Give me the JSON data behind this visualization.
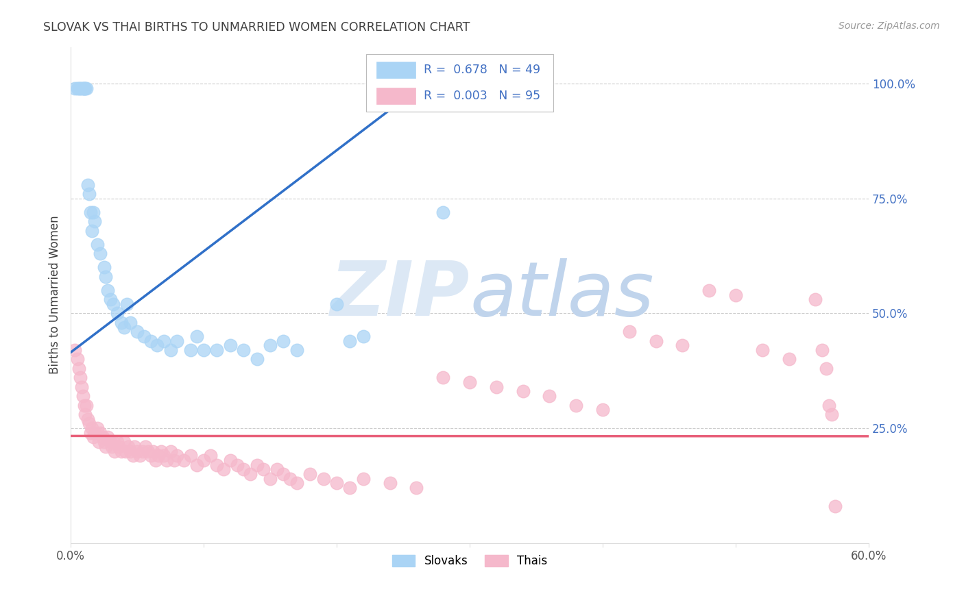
{
  "title": "SLOVAK VS THAI BIRTHS TO UNMARRIED WOMEN CORRELATION CHART",
  "source": "Source: ZipAtlas.com",
  "ylabel": "Births to Unmarried Women",
  "legend_slovak": "Slovaks",
  "legend_thai": "Thais",
  "slovak_R": "0.678",
  "slovak_N": "49",
  "thai_R": "0.003",
  "thai_N": "95",
  "slovak_color": "#aad4f5",
  "thai_color": "#f5b8cb",
  "slovak_line_color": "#3070c8",
  "thai_line_color": "#e8607a",
  "right_ytick_color": "#4472c4",
  "background_color": "#ffffff",
  "grid_color": "#cccccc",
  "watermark_zip_color": "#dce8f5",
  "watermark_atlas_color": "#c8d8ee",
  "title_color": "#404040",
  "source_color": "#999999",
  "xlim": [
    0.0,
    0.6
  ],
  "ylim": [
    0.0,
    1.08
  ],
  "slovak_x": [
    0.003,
    0.005,
    0.006,
    0.007,
    0.008,
    0.009,
    0.01,
    0.01,
    0.011,
    0.012,
    0.013,
    0.014,
    0.015,
    0.016,
    0.017,
    0.018,
    0.02,
    0.022,
    0.025,
    0.026,
    0.028,
    0.03,
    0.032,
    0.035,
    0.038,
    0.04,
    0.042,
    0.045,
    0.05,
    0.055,
    0.06,
    0.065,
    0.07,
    0.075,
    0.08,
    0.09,
    0.095,
    0.1,
    0.11,
    0.12,
    0.13,
    0.14,
    0.15,
    0.16,
    0.17,
    0.2,
    0.21,
    0.22,
    0.28
  ],
  "slovak_y": [
    0.99,
    0.99,
    0.99,
    0.99,
    0.99,
    0.99,
    0.99,
    0.99,
    0.99,
    0.99,
    0.78,
    0.76,
    0.72,
    0.68,
    0.72,
    0.7,
    0.65,
    0.63,
    0.6,
    0.58,
    0.55,
    0.53,
    0.52,
    0.5,
    0.48,
    0.47,
    0.52,
    0.48,
    0.46,
    0.45,
    0.44,
    0.43,
    0.44,
    0.42,
    0.44,
    0.42,
    0.45,
    0.42,
    0.42,
    0.43,
    0.42,
    0.4,
    0.43,
    0.44,
    0.42,
    0.52,
    0.44,
    0.45,
    0.72
  ],
  "thai_x": [
    0.003,
    0.005,
    0.006,
    0.007,
    0.008,
    0.009,
    0.01,
    0.011,
    0.012,
    0.013,
    0.014,
    0.015,
    0.016,
    0.017,
    0.018,
    0.02,
    0.021,
    0.022,
    0.024,
    0.025,
    0.026,
    0.028,
    0.03,
    0.031,
    0.032,
    0.033,
    0.035,
    0.036,
    0.038,
    0.04,
    0.041,
    0.043,
    0.045,
    0.047,
    0.048,
    0.05,
    0.052,
    0.054,
    0.056,
    0.058,
    0.06,
    0.062,
    0.064,
    0.066,
    0.068,
    0.07,
    0.072,
    0.075,
    0.078,
    0.08,
    0.085,
    0.09,
    0.095,
    0.1,
    0.105,
    0.11,
    0.115,
    0.12,
    0.125,
    0.13,
    0.135,
    0.14,
    0.145,
    0.15,
    0.155,
    0.16,
    0.165,
    0.17,
    0.18,
    0.19,
    0.2,
    0.21,
    0.22,
    0.24,
    0.26,
    0.28,
    0.3,
    0.32,
    0.34,
    0.36,
    0.38,
    0.4,
    0.42,
    0.44,
    0.46,
    0.48,
    0.5,
    0.52,
    0.54,
    0.56,
    0.565,
    0.568,
    0.57,
    0.572,
    0.575
  ],
  "thai_y": [
    0.42,
    0.4,
    0.38,
    0.36,
    0.34,
    0.32,
    0.3,
    0.28,
    0.3,
    0.27,
    0.26,
    0.24,
    0.25,
    0.23,
    0.24,
    0.25,
    0.22,
    0.24,
    0.23,
    0.22,
    0.21,
    0.23,
    0.22,
    0.21,
    0.22,
    0.2,
    0.22,
    0.21,
    0.2,
    0.22,
    0.2,
    0.21,
    0.2,
    0.19,
    0.21,
    0.2,
    0.19,
    0.2,
    0.21,
    0.2,
    0.19,
    0.2,
    0.18,
    0.19,
    0.2,
    0.19,
    0.18,
    0.2,
    0.18,
    0.19,
    0.18,
    0.19,
    0.17,
    0.18,
    0.19,
    0.17,
    0.16,
    0.18,
    0.17,
    0.16,
    0.15,
    0.17,
    0.16,
    0.14,
    0.16,
    0.15,
    0.14,
    0.13,
    0.15,
    0.14,
    0.13,
    0.12,
    0.14,
    0.13,
    0.12,
    0.36,
    0.35,
    0.34,
    0.33,
    0.32,
    0.3,
    0.29,
    0.46,
    0.44,
    0.43,
    0.55,
    0.54,
    0.42,
    0.4,
    0.53,
    0.42,
    0.38,
    0.3,
    0.28,
    0.08
  ],
  "thai_line_y_intercept": 0.233,
  "thai_line_slope": -0.001,
  "slovak_line_y_intercept": 0.415,
  "slovak_line_slope": 2.2
}
